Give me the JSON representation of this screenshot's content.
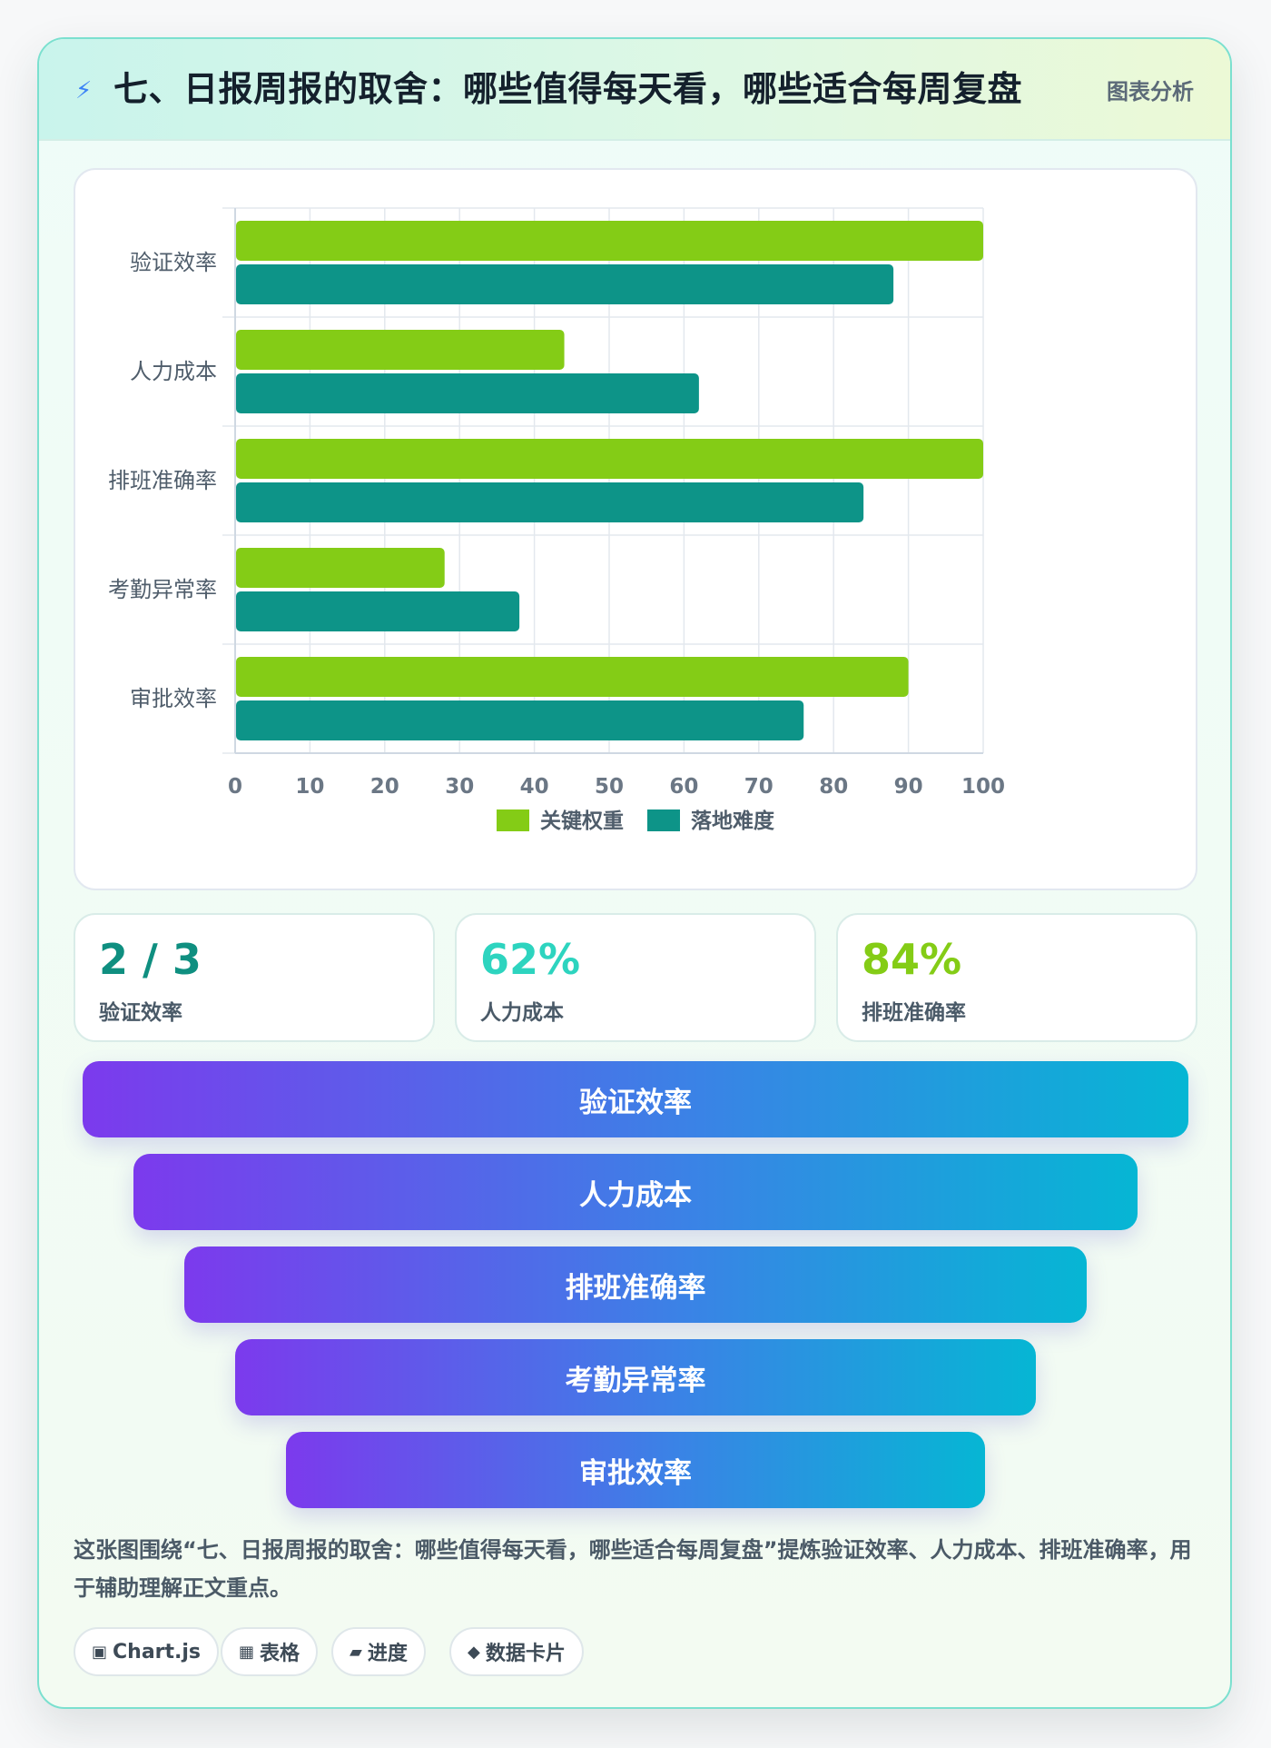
{
  "header": {
    "icon": "lightning-icon",
    "title": "七、日报周报的取舍：哪些值得每天看，哪些适合每周复盘",
    "tag": "图表分析"
  },
  "chart_data": {
    "type": "bar",
    "orientation": "horizontal",
    "categories": [
      "验证效率",
      "人力成本",
      "排班准确率",
      "考勤异常率",
      "审批效率"
    ],
    "series": [
      {
        "name": "关键权重",
        "color": "#84cc16",
        "values": [
          100,
          44,
          100,
          28,
          90
        ]
      },
      {
        "name": "落地难度",
        "color": "#0d9488",
        "values": [
          88,
          62,
          84,
          38,
          76
        ]
      }
    ],
    "xlim": [
      0,
      100
    ],
    "xticks": [
      0,
      10,
      20,
      30,
      40,
      50,
      60,
      70,
      80,
      90,
      100
    ],
    "grid": true,
    "legend": "bottom"
  },
  "stats": [
    {
      "value": "2 / 3",
      "label": "验证效率",
      "color": "#0f8f80"
    },
    {
      "value": "62%",
      "label": "人力成本",
      "color": "#2dd4bf"
    },
    {
      "value": "84%",
      "label": "排班准确率",
      "color": "#84cc16"
    }
  ],
  "funnel": [
    "验证效率",
    "人力成本",
    "排班准确率",
    "考勤异常率",
    "审批效率"
  ],
  "caption": "这张图围绕“七、日报周报的取舍：哪些值得每天看，哪些适合每周复盘”提炼验证效率、人力成本、排班准确率，用于辅助理解正文重点。",
  "chips": [
    {
      "icon": "▣",
      "label": "Chart.js"
    },
    {
      "icon": "▦",
      "label": "表格"
    },
    {
      "icon": "▰",
      "label": "进度"
    },
    {
      "icon": "◆",
      "label": "数据卡片"
    }
  ]
}
